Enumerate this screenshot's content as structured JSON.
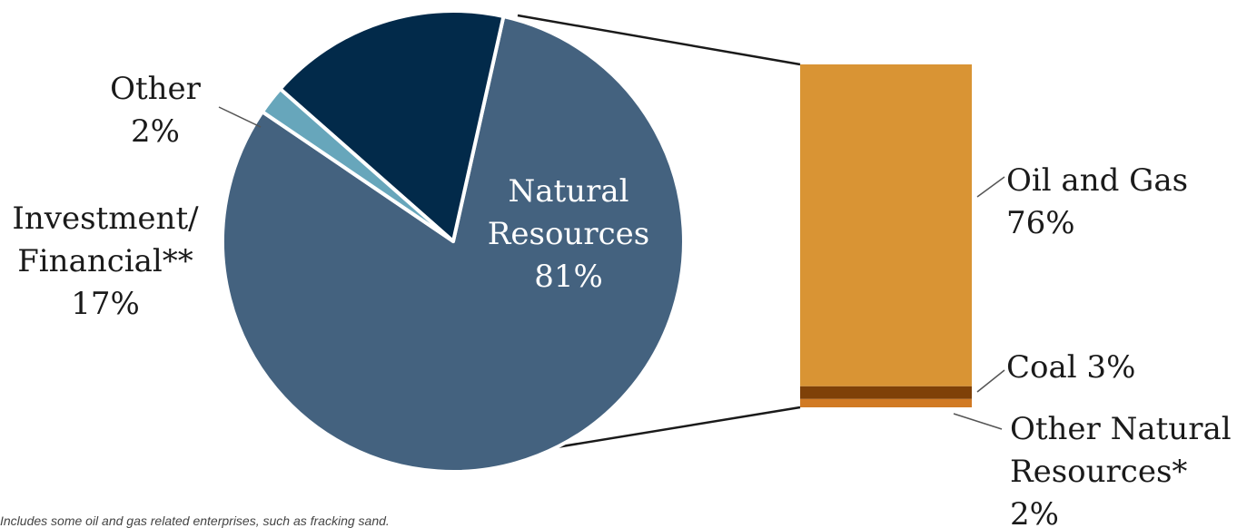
{
  "chart_data": {
    "type": "bar-of-pie",
    "pie": {
      "slices": [
        {
          "name": "Natural Resources",
          "value": 81,
          "label_lines": [
            "Natural",
            "Resources",
            "81%"
          ],
          "color": "#44627f"
        },
        {
          "name": "Investment/Financial**",
          "value": 17,
          "label_lines": [
            "Investment/",
            "Financial**",
            "17%"
          ],
          "color": "#022a4a"
        },
        {
          "name": "Other",
          "value": 2,
          "label_lines": [
            "Other",
            "2%"
          ],
          "color": "#67a6bb"
        }
      ]
    },
    "bar": {
      "segments": [
        {
          "name": "Oil and Gas",
          "value": 76,
          "label_lines": [
            "Oil and Gas",
            "76%"
          ],
          "color": "#d99434"
        },
        {
          "name": "Coal",
          "value": 3,
          "label_lines": [
            "Coal 3%"
          ],
          "color": "#7f4108"
        },
        {
          "name": "Other Natural Resources*",
          "value": 2,
          "label_lines": [
            "Other Natural",
            "Resources*",
            "2%"
          ],
          "color": "#d17a24"
        }
      ]
    }
  },
  "footnote": "Includes some oil and gas related enterprises, such as fracking sand."
}
